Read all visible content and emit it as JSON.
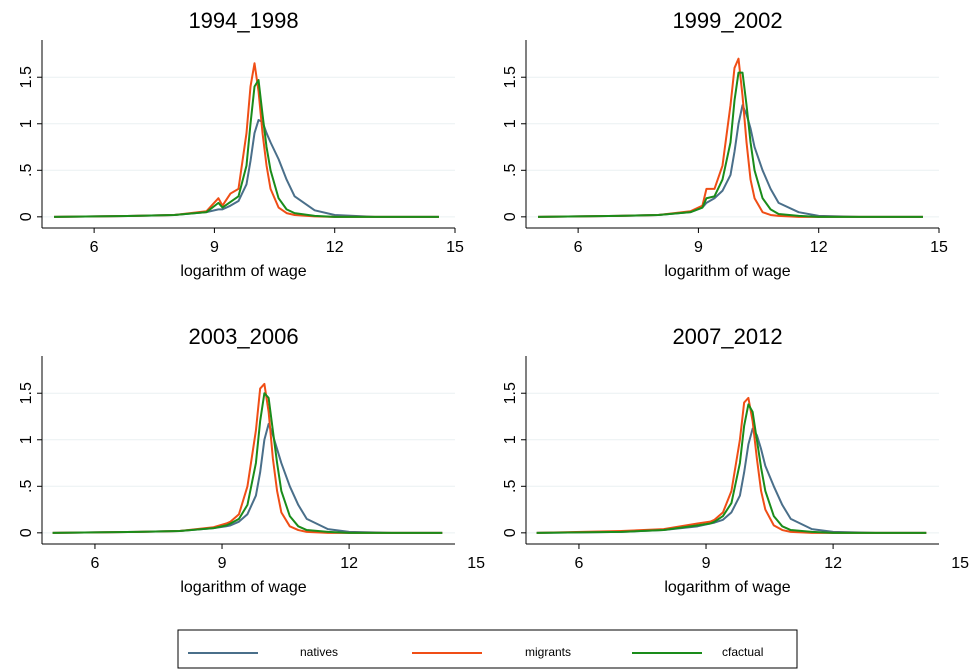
{
  "chart_data": [
    {
      "type": "line",
      "title": "1994_1998",
      "xlabel": "logarithm of wage",
      "x": [
        5,
        7,
        8,
        8.8,
        9.1,
        9.2,
        9.4,
        9.6,
        9.8,
        9.9,
        10,
        10.1,
        10.2,
        10.3,
        10.4,
        10.6,
        10.8,
        11,
        11.5,
        12,
        13,
        14.6
      ],
      "series": [
        {
          "name": "natives",
          "color": "#4a6f8a",
          "values": [
            0,
            0.01,
            0.02,
            0.05,
            0.08,
            0.08,
            0.12,
            0.17,
            0.35,
            0.6,
            0.9,
            1.04,
            1.02,
            0.9,
            0.8,
            0.62,
            0.4,
            0.22,
            0.07,
            0.02,
            0,
            0
          ]
        },
        {
          "name": "migrants",
          "color": "#f04e16",
          "values": [
            0,
            0.01,
            0.02,
            0.06,
            0.2,
            0.12,
            0.25,
            0.3,
            0.9,
            1.4,
            1.65,
            1.35,
            0.9,
            0.55,
            0.3,
            0.1,
            0.04,
            0.02,
            0.005,
            0,
            0,
            0
          ]
        },
        {
          "name": "cfactual",
          "color": "#1a8c1a",
          "values": [
            0,
            0.01,
            0.02,
            0.05,
            0.15,
            0.1,
            0.16,
            0.22,
            0.55,
            1.0,
            1.4,
            1.47,
            1.1,
            0.75,
            0.5,
            0.2,
            0.08,
            0.04,
            0.01,
            0,
            0,
            0
          ]
        }
      ],
      "xlim": [
        4.7,
        15
      ],
      "xticks": [
        6,
        9,
        12,
        15
      ],
      "ylim": [
        -0.12,
        1.9
      ],
      "yticks": [
        0,
        {
          "value": 0.5,
          "label": ".5"
        },
        1,
        1.5
      ],
      "grid": true
    },
    {
      "type": "line",
      "title": "1999_2002",
      "xlabel": "logarithm of wage",
      "x": [
        5,
        7,
        8,
        8.8,
        9.1,
        9.2,
        9.4,
        9.6,
        9.8,
        9.9,
        10,
        10.1,
        10.2,
        10.3,
        10.4,
        10.6,
        10.8,
        11,
        11.5,
        12,
        13,
        14.6
      ],
      "series": [
        {
          "name": "natives",
          "color": "#4a6f8a",
          "values": [
            0,
            0.01,
            0.02,
            0.05,
            0.1,
            0.15,
            0.2,
            0.28,
            0.45,
            0.7,
            1.0,
            1.2,
            1.1,
            0.95,
            0.75,
            0.5,
            0.3,
            0.15,
            0.05,
            0.01,
            0,
            0
          ]
        },
        {
          "name": "migrants",
          "color": "#f04e16",
          "values": [
            0,
            0.01,
            0.02,
            0.06,
            0.12,
            0.3,
            0.3,
            0.55,
            1.2,
            1.6,
            1.7,
            1.3,
            0.8,
            0.4,
            0.2,
            0.05,
            0.02,
            0.01,
            0,
            0,
            0,
            0
          ]
        },
        {
          "name": "cfactual",
          "color": "#1a8c1a",
          "values": [
            0,
            0.01,
            0.02,
            0.05,
            0.1,
            0.2,
            0.22,
            0.4,
            0.8,
            1.25,
            1.55,
            1.55,
            1.2,
            0.8,
            0.5,
            0.2,
            0.08,
            0.03,
            0.01,
            0,
            0,
            0
          ]
        }
      ],
      "xlim": [
        4.7,
        15
      ],
      "xticks": [
        6,
        9,
        12,
        15
      ],
      "ylim": [
        -0.12,
        1.9
      ],
      "yticks": [
        0,
        {
          "value": 0.5,
          "label": ".5"
        },
        1,
        1.5
      ],
      "grid": true
    },
    {
      "type": "line",
      "title": "2003_2006",
      "xlabel": "logarithm of wage",
      "x": [
        5,
        7,
        8,
        8.8,
        9.1,
        9.2,
        9.4,
        9.6,
        9.8,
        9.9,
        10,
        10.1,
        10.2,
        10.3,
        10.4,
        10.6,
        10.8,
        11,
        11.5,
        12,
        13,
        14.2
      ],
      "series": [
        {
          "name": "natives",
          "color": "#4a6f8a",
          "values": [
            0,
            0.01,
            0.02,
            0.05,
            0.07,
            0.08,
            0.12,
            0.2,
            0.4,
            0.65,
            1.0,
            1.17,
            1.05,
            0.9,
            0.75,
            0.5,
            0.3,
            0.15,
            0.04,
            0.01,
            0,
            0
          ]
        },
        {
          "name": "migrants",
          "color": "#f04e16",
          "values": [
            0,
            0.01,
            0.02,
            0.06,
            0.1,
            0.12,
            0.2,
            0.5,
            1.1,
            1.55,
            1.6,
            1.3,
            0.8,
            0.45,
            0.22,
            0.07,
            0.03,
            0.01,
            0,
            0,
            0,
            0
          ]
        },
        {
          "name": "cfactual",
          "color": "#1a8c1a",
          "values": [
            0,
            0.01,
            0.02,
            0.05,
            0.08,
            0.1,
            0.15,
            0.3,
            0.75,
            1.2,
            1.5,
            1.45,
            1.1,
            0.75,
            0.45,
            0.18,
            0.07,
            0.03,
            0.01,
            0,
            0,
            0
          ]
        }
      ],
      "xlim": [
        4.75,
        14.5
      ],
      "xticks": [
        6,
        9,
        12,
        15
      ],
      "ylim": [
        -0.12,
        1.9
      ],
      "yticks": [
        0,
        {
          "value": 0.5,
          "label": ".5"
        },
        1,
        1.5
      ],
      "grid": true
    },
    {
      "type": "line",
      "title": "2007_2012",
      "xlabel": "logarithm of wage",
      "x": [
        5,
        7,
        8,
        8.8,
        9.1,
        9.2,
        9.4,
        9.6,
        9.8,
        9.9,
        10,
        10.1,
        10.2,
        10.3,
        10.4,
        10.6,
        10.8,
        11,
        11.5,
        12,
        13,
        14.2
      ],
      "series": [
        {
          "name": "natives",
          "color": "#4a6f8a",
          "values": [
            0,
            0.01,
            0.03,
            0.07,
            0.1,
            0.11,
            0.14,
            0.22,
            0.4,
            0.65,
            0.95,
            1.12,
            1.05,
            0.9,
            0.72,
            0.5,
            0.3,
            0.15,
            0.04,
            0.01,
            0,
            0
          ]
        },
        {
          "name": "migrants",
          "color": "#f04e16",
          "values": [
            0,
            0.02,
            0.04,
            0.1,
            0.12,
            0.14,
            0.22,
            0.45,
            1.0,
            1.4,
            1.45,
            1.2,
            0.8,
            0.45,
            0.25,
            0.08,
            0.03,
            0.01,
            0,
            0,
            0,
            0
          ]
        },
        {
          "name": "cfactual",
          "color": "#1a8c1a",
          "values": [
            0,
            0.01,
            0.03,
            0.08,
            0.1,
            0.12,
            0.18,
            0.32,
            0.75,
            1.15,
            1.38,
            1.3,
            1.0,
            0.7,
            0.45,
            0.18,
            0.07,
            0.03,
            0.01,
            0,
            0,
            0
          ]
        }
      ],
      "xlim": [
        4.75,
        14.5
      ],
      "xticks": [
        6,
        9,
        12,
        15
      ],
      "ylim": [
        -0.12,
        1.9
      ],
      "yticks": [
        0,
        {
          "value": 0.5,
          "label": ".5"
        },
        1,
        1.5
      ],
      "grid": true
    }
  ]
}
